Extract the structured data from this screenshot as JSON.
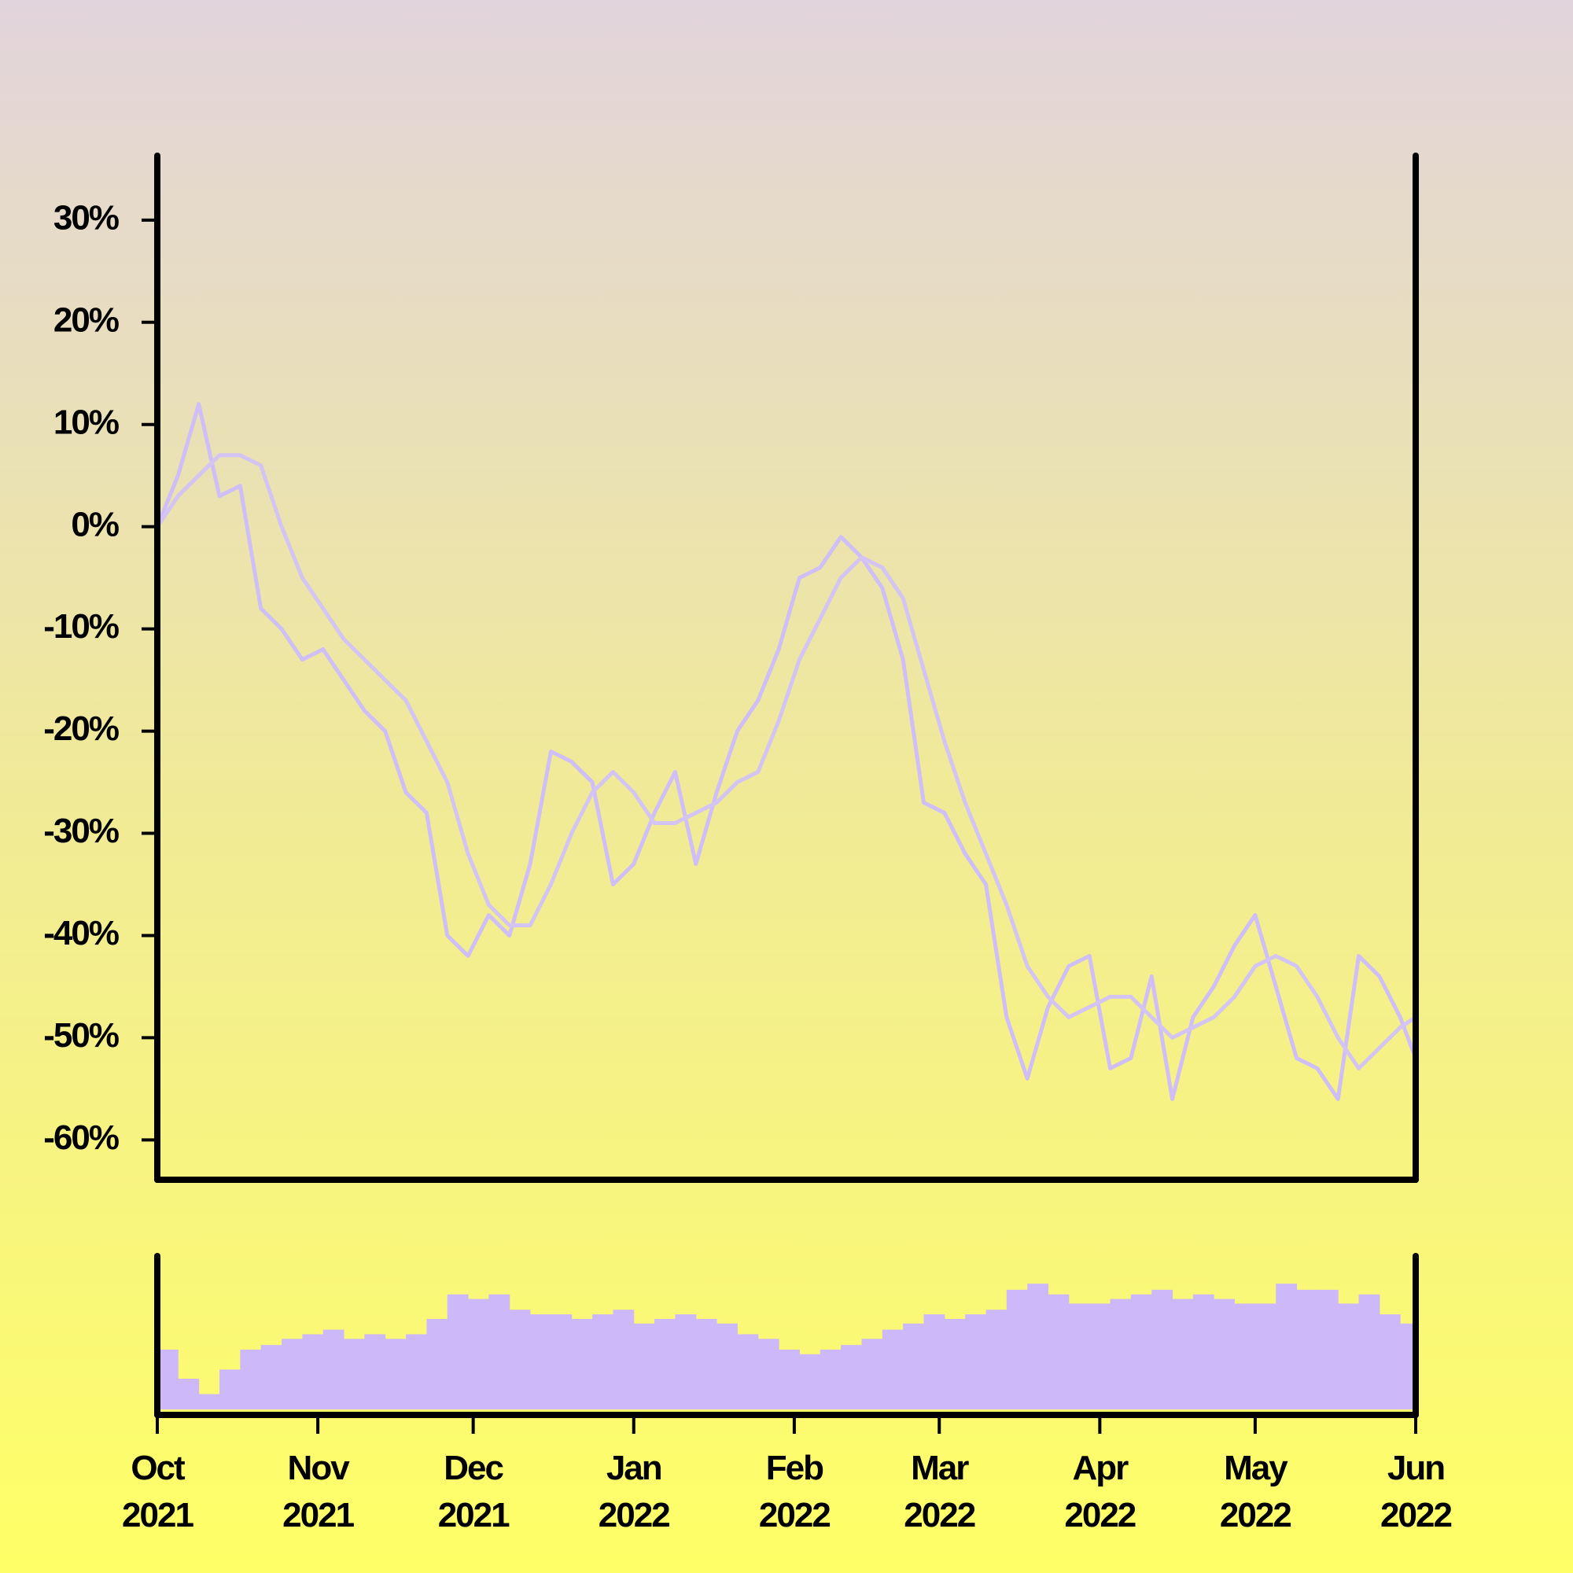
{
  "chart_data": {
    "type": "line",
    "x": [
      0,
      4,
      8,
      12,
      16,
      20,
      24,
      28,
      32,
      36,
      40,
      44,
      48,
      52,
      56,
      60,
      64,
      68,
      72,
      76,
      80,
      84,
      88,
      92,
      96,
      100,
      104,
      108,
      112,
      116,
      120,
      124,
      128,
      132,
      136,
      140,
      144,
      148,
      152,
      156,
      160,
      164,
      168,
      172,
      176,
      180,
      184,
      188,
      192,
      196,
      200,
      204,
      208,
      212,
      216,
      220,
      224,
      228,
      232,
      236,
      240,
      243
    ],
    "xlim": [
      0,
      243
    ],
    "xticks": [
      {
        "value": 0,
        "label": "Oct 2021"
      },
      {
        "value": 31,
        "label": "Nov 2021"
      },
      {
        "value": 61,
        "label": "Dec 2021"
      },
      {
        "value": 92,
        "label": "Jan 2022"
      },
      {
        "value": 123,
        "label": "Feb 2022"
      },
      {
        "value": 151,
        "label": "Mar 2022"
      },
      {
        "value": 182,
        "label": "Apr 2022"
      },
      {
        "value": 212,
        "label": "May 2022"
      },
      {
        "value": 243,
        "label": "Jun 2022"
      }
    ],
    "ylim": [
      -63.9,
      36.3
    ],
    "yticks": [
      {
        "value": 30,
        "label": "30%"
      },
      {
        "value": 20,
        "label": "20%"
      },
      {
        "value": 10,
        "label": "10%"
      },
      {
        "value": 0,
        "label": "0%"
      },
      {
        "value": -10,
        "label": "-10%"
      },
      {
        "value": -20,
        "label": "-20%"
      },
      {
        "value": -30,
        "label": "-30%"
      },
      {
        "value": -40,
        "label": "-40%"
      },
      {
        "value": -50,
        "label": "-50%"
      },
      {
        "value": -60,
        "label": "-60%"
      }
    ],
    "y2lim": [
      0,
      100
    ],
    "series": [
      {
        "color": "#cfbef7",
        "values": [
          0,
          5,
          12,
          3,
          4,
          -8,
          -10,
          -13,
          -12,
          -15,
          -18,
          -20,
          -26,
          -28,
          -40,
          -42,
          -38,
          -40,
          -33,
          -22,
          -23,
          -25,
          -35,
          -33,
          -28,
          -24,
          -33,
          -26,
          -20,
          -17,
          -12,
          -5,
          -4,
          -1,
          -3,
          -6,
          -13,
          -27,
          -28,
          -32,
          -35,
          -48,
          -54,
          -47,
          -43,
          -42,
          -53,
          -52,
          -44,
          -56,
          -48,
          -45,
          -41,
          -38,
          -45,
          -52,
          -53,
          -56,
          -42,
          -44,
          -48,
          -52
        ]
      },
      {
        "color": "#d3c4f3",
        "values": [
          0,
          3,
          5,
          7,
          7,
          6,
          0,
          -5,
          -8,
          -11,
          -13,
          -15,
          -17,
          -21,
          -25,
          -32,
          -37,
          -39,
          -39,
          -35,
          -30,
          -26,
          -24,
          -26,
          -29,
          -29,
          -28,
          -27,
          -25,
          -24,
          -19,
          -13,
          -9,
          -5,
          -3,
          -4,
          -7,
          -14,
          -21,
          -27,
          -32,
          -37,
          -43,
          -46,
          -48,
          -47,
          -46,
          -46,
          -48,
          -50,
          -49,
          -48,
          -46,
          -43,
          -42,
          -43,
          -46,
          -50,
          -53,
          -51,
          -49,
          -48
        ]
      },
      {
        "type": "bar",
        "axis": "y2",
        "color": "#cdb9fa",
        "values": [
          39,
          20,
          10,
          26,
          39,
          42,
          46,
          49,
          52,
          46,
          49,
          46,
          49,
          59,
          75,
          72,
          75,
          65,
          62,
          62,
          59,
          62,
          65,
          56,
          59,
          62,
          59,
          56,
          49,
          46,
          39,
          36,
          39,
          42,
          46,
          52,
          56,
          62,
          59,
          62,
          65,
          78,
          82,
          75,
          69,
          69,
          72,
          75,
          78,
          72,
          75,
          72,
          69,
          69,
          82,
          78,
          78,
          69,
          75,
          62,
          56,
          16
        ]
      }
    ]
  }
}
